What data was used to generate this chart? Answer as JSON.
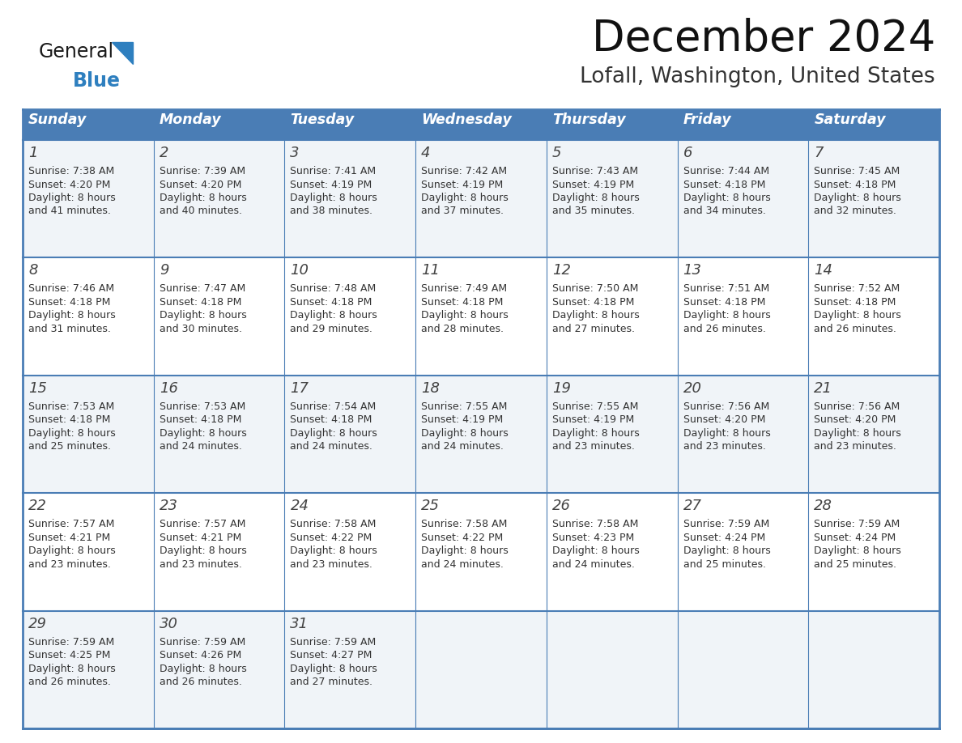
{
  "title": "December 2024",
  "subtitle": "Lofall, Washington, United States",
  "header_bg_color": "#4A7DB5",
  "header_text_color": "#FFFFFF",
  "border_color": "#4A7DB5",
  "text_color": "#333333",
  "days_of_week": [
    "Sunday",
    "Monday",
    "Tuesday",
    "Wednesday",
    "Thursday",
    "Friday",
    "Saturday"
  ],
  "calendar_data": [
    [
      {
        "day": "1",
        "sunrise": "7:38 AM",
        "sunset": "4:20 PM",
        "daylight_h": "8 hours",
        "daylight_m": "41 minutes."
      },
      {
        "day": "2",
        "sunrise": "7:39 AM",
        "sunset": "4:20 PM",
        "daylight_h": "8 hours",
        "daylight_m": "40 minutes."
      },
      {
        "day": "3",
        "sunrise": "7:41 AM",
        "sunset": "4:19 PM",
        "daylight_h": "8 hours",
        "daylight_m": "38 minutes."
      },
      {
        "day": "4",
        "sunrise": "7:42 AM",
        "sunset": "4:19 PM",
        "daylight_h": "8 hours",
        "daylight_m": "37 minutes."
      },
      {
        "day": "5",
        "sunrise": "7:43 AM",
        "sunset": "4:19 PM",
        "daylight_h": "8 hours",
        "daylight_m": "35 minutes."
      },
      {
        "day": "6",
        "sunrise": "7:44 AM",
        "sunset": "4:18 PM",
        "daylight_h": "8 hours",
        "daylight_m": "34 minutes."
      },
      {
        "day": "7",
        "sunrise": "7:45 AM",
        "sunset": "4:18 PM",
        "daylight_h": "8 hours",
        "daylight_m": "32 minutes."
      }
    ],
    [
      {
        "day": "8",
        "sunrise": "7:46 AM",
        "sunset": "4:18 PM",
        "daylight_h": "8 hours",
        "daylight_m": "31 minutes."
      },
      {
        "day": "9",
        "sunrise": "7:47 AM",
        "sunset": "4:18 PM",
        "daylight_h": "8 hours",
        "daylight_m": "30 minutes."
      },
      {
        "day": "10",
        "sunrise": "7:48 AM",
        "sunset": "4:18 PM",
        "daylight_h": "8 hours",
        "daylight_m": "29 minutes."
      },
      {
        "day": "11",
        "sunrise": "7:49 AM",
        "sunset": "4:18 PM",
        "daylight_h": "8 hours",
        "daylight_m": "28 minutes."
      },
      {
        "day": "12",
        "sunrise": "7:50 AM",
        "sunset": "4:18 PM",
        "daylight_h": "8 hours",
        "daylight_m": "27 minutes."
      },
      {
        "day": "13",
        "sunrise": "7:51 AM",
        "sunset": "4:18 PM",
        "daylight_h": "8 hours",
        "daylight_m": "26 minutes."
      },
      {
        "day": "14",
        "sunrise": "7:52 AM",
        "sunset": "4:18 PM",
        "daylight_h": "8 hours",
        "daylight_m": "26 minutes."
      }
    ],
    [
      {
        "day": "15",
        "sunrise": "7:53 AM",
        "sunset": "4:18 PM",
        "daylight_h": "8 hours",
        "daylight_m": "25 minutes."
      },
      {
        "day": "16",
        "sunrise": "7:53 AM",
        "sunset": "4:18 PM",
        "daylight_h": "8 hours",
        "daylight_m": "24 minutes."
      },
      {
        "day": "17",
        "sunrise": "7:54 AM",
        "sunset": "4:18 PM",
        "daylight_h": "8 hours",
        "daylight_m": "24 minutes."
      },
      {
        "day": "18",
        "sunrise": "7:55 AM",
        "sunset": "4:19 PM",
        "daylight_h": "8 hours",
        "daylight_m": "24 minutes."
      },
      {
        "day": "19",
        "sunrise": "7:55 AM",
        "sunset": "4:19 PM",
        "daylight_h": "8 hours",
        "daylight_m": "23 minutes."
      },
      {
        "day": "20",
        "sunrise": "7:56 AM",
        "sunset": "4:20 PM",
        "daylight_h": "8 hours",
        "daylight_m": "23 minutes."
      },
      {
        "day": "21",
        "sunrise": "7:56 AM",
        "sunset": "4:20 PM",
        "daylight_h": "8 hours",
        "daylight_m": "23 minutes."
      }
    ],
    [
      {
        "day": "22",
        "sunrise": "7:57 AM",
        "sunset": "4:21 PM",
        "daylight_h": "8 hours",
        "daylight_m": "23 minutes."
      },
      {
        "day": "23",
        "sunrise": "7:57 AM",
        "sunset": "4:21 PM",
        "daylight_h": "8 hours",
        "daylight_m": "23 minutes."
      },
      {
        "day": "24",
        "sunrise": "7:58 AM",
        "sunset": "4:22 PM",
        "daylight_h": "8 hours",
        "daylight_m": "23 minutes."
      },
      {
        "day": "25",
        "sunrise": "7:58 AM",
        "sunset": "4:22 PM",
        "daylight_h": "8 hours",
        "daylight_m": "24 minutes."
      },
      {
        "day": "26",
        "sunrise": "7:58 AM",
        "sunset": "4:23 PM",
        "daylight_h": "8 hours",
        "daylight_m": "24 minutes."
      },
      {
        "day": "27",
        "sunrise": "7:59 AM",
        "sunset": "4:24 PM",
        "daylight_h": "8 hours",
        "daylight_m": "25 minutes."
      },
      {
        "day": "28",
        "sunrise": "7:59 AM",
        "sunset": "4:24 PM",
        "daylight_h": "8 hours",
        "daylight_m": "25 minutes."
      }
    ],
    [
      {
        "day": "29",
        "sunrise": "7:59 AM",
        "sunset": "4:25 PM",
        "daylight_h": "8 hours",
        "daylight_m": "26 minutes."
      },
      {
        "day": "30",
        "sunrise": "7:59 AM",
        "sunset": "4:26 PM",
        "daylight_h": "8 hours",
        "daylight_m": "26 minutes."
      },
      {
        "day": "31",
        "sunrise": "7:59 AM",
        "sunset": "4:27 PM",
        "daylight_h": "8 hours",
        "daylight_m": "27 minutes."
      },
      null,
      null,
      null,
      null
    ]
  ],
  "logo_color_general": "#1a1a1a",
  "logo_color_blue": "#2E7FBF",
  "logo_triangle_color": "#2E7FBF",
  "fig_width": 11.88,
  "fig_height": 9.18,
  "dpi": 100
}
